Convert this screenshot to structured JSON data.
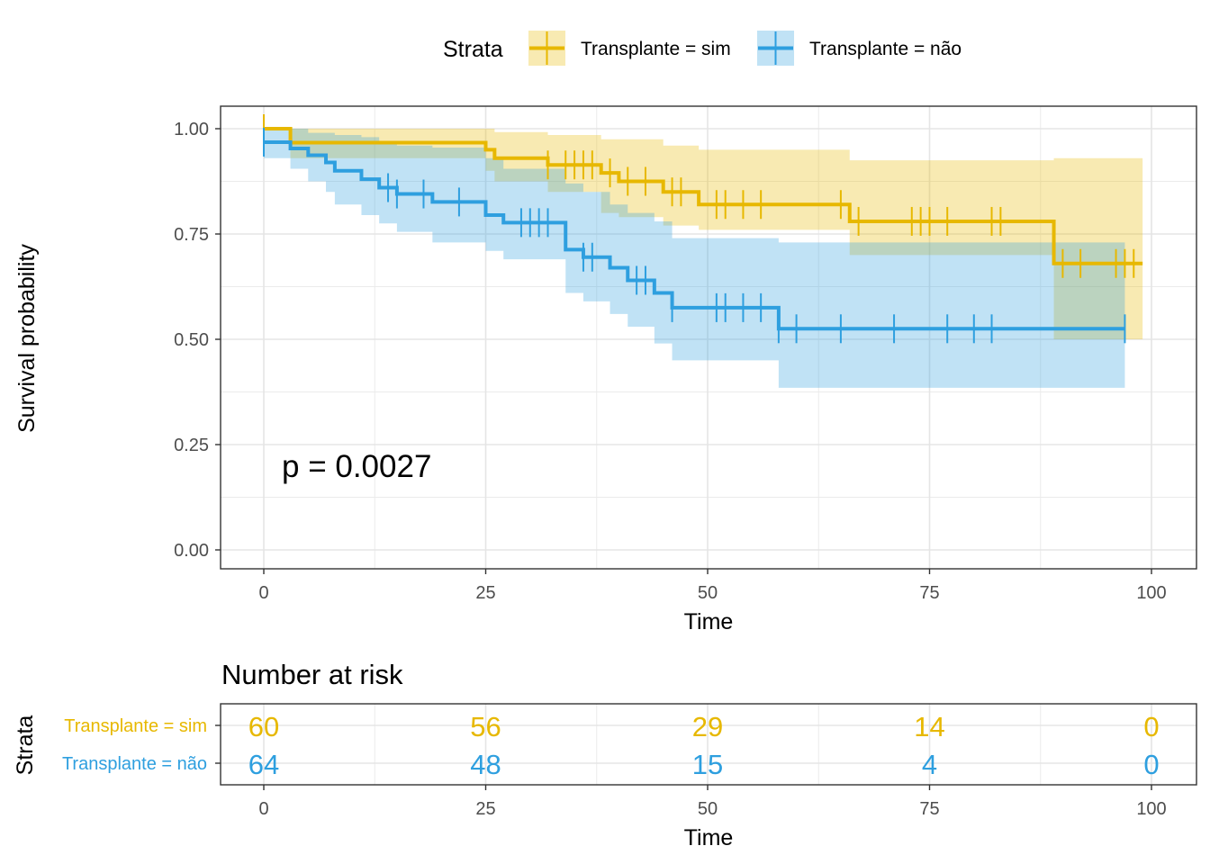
{
  "colors": {
    "sim": "#E7B800",
    "nao": "#2E9FDF"
  },
  "legend": {
    "title": "Strata",
    "items": [
      {
        "label": "Transplante = sim",
        "color": "#E7B800"
      },
      {
        "label": "Transplante = não",
        "color": "#2E9FDF"
      }
    ]
  },
  "p_value_text": "p = 0.0027",
  "chart_data": {
    "type": "line",
    "subtype": "kaplan-meier step plot with confidence bands and censor marks",
    "xlabel": "Time",
    "ylabel": "Survival probability",
    "xlim": [
      0,
      100
    ],
    "ylim": [
      0,
      1
    ],
    "xticks": [
      0,
      25,
      50,
      75,
      100
    ],
    "yticks": [
      0,
      0.25,
      0.5,
      0.75,
      1.0
    ],
    "xtick_labels": [
      "0",
      "25",
      "50",
      "75",
      "100"
    ],
    "ytick_labels": [
      "0.00",
      "0.25",
      "0.50",
      "0.75",
      "1.00"
    ],
    "grid": true,
    "legend_position": "top",
    "series": [
      {
        "name": "Transplante = sim",
        "color": "#E7B800",
        "steps": [
          [
            0,
            1.0
          ],
          [
            3,
            0.967
          ],
          [
            25,
            0.95
          ],
          [
            26,
            0.93
          ],
          [
            32,
            0.914
          ],
          [
            38,
            0.895
          ],
          [
            40,
            0.875
          ],
          [
            45,
            0.85
          ],
          [
            49,
            0.82
          ],
          [
            66,
            0.78
          ],
          [
            89,
            0.68
          ],
          [
            99,
            0.68
          ]
        ],
        "ci_lower": [
          [
            0,
            1.0
          ],
          [
            3,
            0.93
          ],
          [
            25,
            0.9
          ],
          [
            26,
            0.875
          ],
          [
            32,
            0.85
          ],
          [
            38,
            0.8
          ],
          [
            40,
            0.79
          ],
          [
            45,
            0.77
          ],
          [
            49,
            0.76
          ],
          [
            66,
            0.7
          ],
          [
            89,
            0.5
          ],
          [
            99,
            0.5
          ]
        ],
        "ci_upper": [
          [
            0,
            1.0
          ],
          [
            3,
            1.0
          ],
          [
            26,
            0.992
          ],
          [
            32,
            0.985
          ],
          [
            38,
            0.975
          ],
          [
            45,
            0.96
          ],
          [
            49,
            0.95
          ],
          [
            66,
            0.925
          ],
          [
            89,
            0.93
          ],
          [
            99,
            0.93
          ]
        ],
        "censor_times": [
          0,
          32,
          34,
          35,
          36,
          37,
          39,
          41,
          43,
          46,
          47,
          51,
          52,
          54,
          56,
          65,
          67,
          73,
          74,
          75,
          77,
          82,
          83,
          90,
          92,
          96,
          97,
          98
        ]
      },
      {
        "name": "Transplante = não",
        "color": "#2E9FDF",
        "steps": [
          [
            0,
            0.968
          ],
          [
            3,
            0.953
          ],
          [
            5,
            0.937
          ],
          [
            7,
            0.92
          ],
          [
            8,
            0.9
          ],
          [
            11,
            0.88
          ],
          [
            13,
            0.86
          ],
          [
            15,
            0.845
          ],
          [
            19,
            0.826
          ],
          [
            25,
            0.795
          ],
          [
            27,
            0.777
          ],
          [
            34,
            0.713
          ],
          [
            36,
            0.695
          ],
          [
            39,
            0.67
          ],
          [
            41,
            0.64
          ],
          [
            44,
            0.61
          ],
          [
            46,
            0.575
          ],
          [
            58,
            0.525
          ],
          [
            97,
            0.525
          ]
        ],
        "ci_lower": [
          [
            0,
            0.93
          ],
          [
            3,
            0.905
          ],
          [
            5,
            0.875
          ],
          [
            7,
            0.85
          ],
          [
            8,
            0.82
          ],
          [
            11,
            0.795
          ],
          [
            13,
            0.775
          ],
          [
            15,
            0.755
          ],
          [
            19,
            0.73
          ],
          [
            25,
            0.71
          ],
          [
            27,
            0.69
          ],
          [
            34,
            0.61
          ],
          [
            36,
            0.59
          ],
          [
            39,
            0.56
          ],
          [
            41,
            0.53
          ],
          [
            44,
            0.49
          ],
          [
            46,
            0.45
          ],
          [
            58,
            0.385
          ],
          [
            97,
            0.385
          ]
        ],
        "ci_upper": [
          [
            0,
            1.0
          ],
          [
            5,
            0.99
          ],
          [
            8,
            0.985
          ],
          [
            11,
            0.98
          ],
          [
            13,
            0.97
          ],
          [
            15,
            0.96
          ],
          [
            19,
            0.955
          ],
          [
            25,
            0.93
          ],
          [
            27,
            0.905
          ],
          [
            34,
            0.87
          ],
          [
            36,
            0.85
          ],
          [
            39,
            0.82
          ],
          [
            41,
            0.8
          ],
          [
            44,
            0.78
          ],
          [
            46,
            0.74
          ],
          [
            58,
            0.73
          ],
          [
            89,
            0.73
          ],
          [
            97,
            0.73
          ]
        ],
        "censor_times": [
          0,
          14,
          15,
          18,
          22,
          29,
          30,
          31,
          32,
          36,
          37,
          42,
          43,
          46,
          51,
          52,
          54,
          56,
          58,
          60,
          65,
          71,
          77,
          80,
          82,
          97
        ]
      }
    ],
    "annotations": [
      "p = 0.0027"
    ]
  },
  "risk_table": {
    "title": "Number at risk",
    "ylabel": "Strata",
    "xlabel": "Time",
    "times": [
      0,
      25,
      50,
      75,
      100
    ],
    "tick_labels": [
      "0",
      "25",
      "50",
      "75",
      "100"
    ],
    "rows": [
      {
        "label": "Transplante = sim",
        "color": "#E7B800",
        "values": [
          "60",
          "56",
          "29",
          "14",
          "0"
        ]
      },
      {
        "label": "Transplante = não",
        "color": "#2E9FDF",
        "values": [
          "64",
          "48",
          "15",
          "4",
          "0"
        ]
      }
    ]
  }
}
